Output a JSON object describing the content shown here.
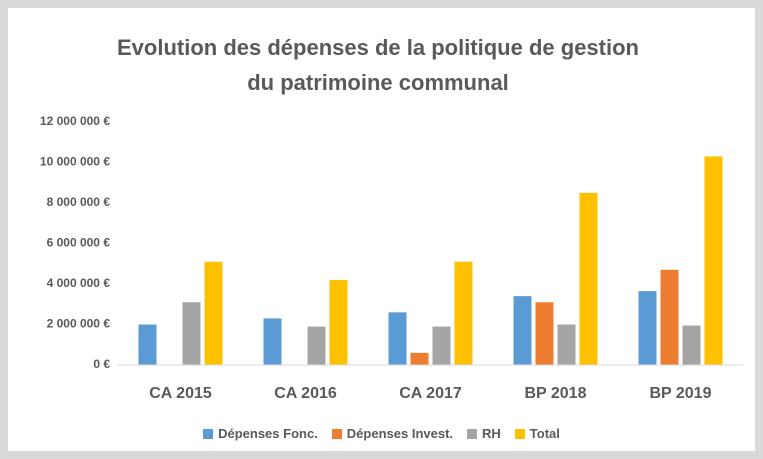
{
  "chart_data": {
    "type": "bar",
    "title": "Evolution des dépenses de la politique de gestion du patrimoine communal",
    "categories": [
      "CA 2015",
      "CA 2016",
      "CA 2017",
      "BP 2018",
      "BP 2019"
    ],
    "series": [
      {
        "name": "Dépenses Fonc.",
        "color": "#5b9bd5",
        "values": [
          2000000,
          2300000,
          2600000,
          3400000,
          3650000
        ]
      },
      {
        "name": "Dépenses Invest.",
        "color": "#ed7d31",
        "values": [
          0,
          0,
          600000,
          3100000,
          4700000
        ]
      },
      {
        "name": "RH",
        "color": "#a5a5a5",
        "values": [
          3100000,
          1900000,
          1900000,
          2000000,
          1950000
        ]
      },
      {
        "name": "Total",
        "color": "#ffc000",
        "values": [
          5100000,
          4200000,
          5100000,
          8500000,
          10300000
        ]
      }
    ],
    "ylim": [
      0,
      12000000
    ],
    "yticks": [
      {
        "value": 0,
        "label": "0 €"
      },
      {
        "value": 2000000,
        "label": "2 000 000 €"
      },
      {
        "value": 4000000,
        "label": "4 000 000 €"
      },
      {
        "value": 6000000,
        "label": "6 000 000 €"
      },
      {
        "value": 8000000,
        "label": "8 000 000 €"
      },
      {
        "value": 10000000,
        "label": "10 000 000 €"
      },
      {
        "value": 12000000,
        "label": "12 000 000 €"
      }
    ],
    "grid": false,
    "legend": "bottom"
  }
}
